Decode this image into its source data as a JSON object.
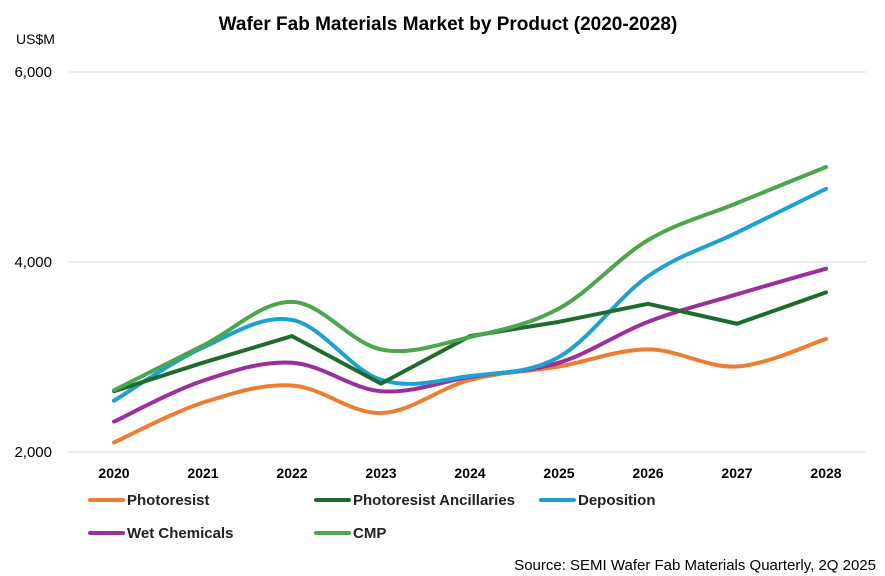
{
  "chart_data": {
    "type": "line",
    "title": "Wafer Fab Materials Market by Product (2020-2028)",
    "ylabel": "US$M",
    "xlabel": "",
    "categories": [
      "2020",
      "2021",
      "2022",
      "2023",
      "2024",
      "2025",
      "2026",
      "2027",
      "2028"
    ],
    "ylim": [
      2000,
      6000
    ],
    "yticks": [
      "2,000",
      "4,000",
      "6,000"
    ],
    "ytick_values": [
      2000,
      4000,
      6000
    ],
    "grid": "horizontal",
    "legend_position": "bottom",
    "source": "Source: SEMI Wafer Fab Materials Quarterly, 2Q 2025",
    "series": [
      {
        "name": "Photoresist",
        "color": "#ED7D31",
        "smooth": true,
        "values": [
          2100,
          2520,
          2700,
          2410,
          2760,
          2900,
          3080,
          2900,
          3190
        ]
      },
      {
        "name": "Photoresist Ancillaries",
        "color": "#1E6B2E",
        "smooth": false,
        "values": [
          2640,
          2940,
          3220,
          2720,
          3220,
          3370,
          3560,
          3350,
          3680
        ]
      },
      {
        "name": "Deposition",
        "color": "#1DA1D2",
        "smooth": true,
        "values": [
          2540,
          3100,
          3390,
          2760,
          2800,
          3000,
          3850,
          4310,
          4770
        ]
      },
      {
        "name": "Wet Chemicals",
        "color": "#9B2F9B",
        "smooth": true,
        "values": [
          2320,
          2750,
          2940,
          2640,
          2790,
          2940,
          3370,
          3660,
          3930
        ]
      },
      {
        "name": "CMP",
        "color": "#4CA64C",
        "smooth": true,
        "values": [
          2650,
          3120,
          3580,
          3080,
          3210,
          3510,
          4230,
          4620,
          5000
        ]
      }
    ]
  }
}
